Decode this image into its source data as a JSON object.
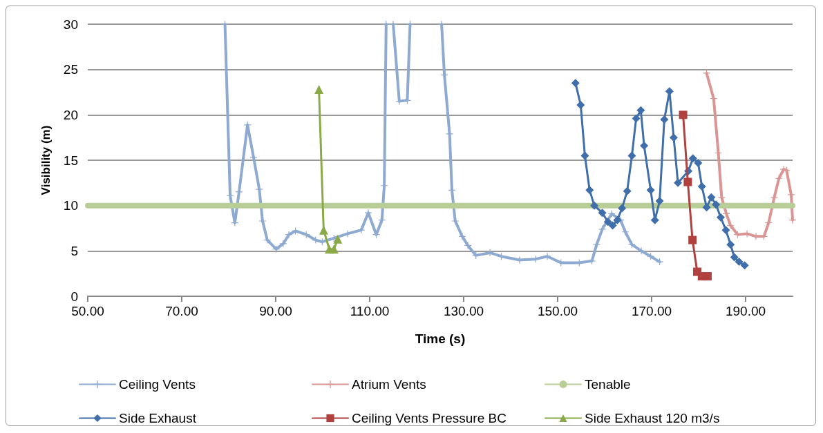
{
  "chart_data": {
    "type": "line",
    "xlabel": "Time (s)",
    "ylabel": "Visibility (m)",
    "xlim": [
      50,
      200
    ],
    "xticks": [
      {
        "value": 50,
        "label": "50.00"
      },
      {
        "value": 70,
        "label": "70.00"
      },
      {
        "value": 90,
        "label": "90.00"
      },
      {
        "value": 110,
        "label": "110.00"
      },
      {
        "value": 130,
        "label": "130.00"
      },
      {
        "value": 150,
        "label": "150.00"
      },
      {
        "value": 170,
        "label": "170.00"
      },
      {
        "value": 190,
        "label": "190.00"
      }
    ],
    "ylim": [
      0,
      30
    ],
    "yticks": [
      0,
      5,
      10,
      15,
      20,
      25,
      30
    ],
    "grid": "y",
    "legend": "bottom",
    "line_style": "solid",
    "series": [
      {
        "name": "Ceiling Vents",
        "color": "#8eaad1",
        "marker": "cross",
        "x": [
          79.2,
          80.3,
          81.3,
          82.2,
          84.0,
          85.3,
          86.5,
          87.2,
          88.2,
          90.1,
          91.6,
          92.8,
          94.2,
          96.5,
          98.5,
          99.9,
          102.4,
          105.3,
          108.2,
          109.7,
          111.4,
          112.6,
          113.1,
          113.5,
          114.2,
          115.0,
          116.3,
          118.0,
          118.6,
          122,
          125.3,
          125.9,
          127.0,
          127.5,
          128.2,
          129.7,
          130.9,
          132.6,
          135.6,
          138.0,
          141.9,
          145.3,
          147.8,
          150.7,
          154.6,
          157.3,
          158.3,
          159.5,
          161.5,
          163.4,
          164.4,
          165.8,
          167.8,
          169.8,
          171.7
        ],
        "values": [
          30,
          11.1,
          8.1,
          11.5,
          18.9,
          15.3,
          11.8,
          8.3,
          6.2,
          5.2,
          5.8,
          6.8,
          7.2,
          6.8,
          6.2,
          6.0,
          6.4,
          6.9,
          7.3,
          9.2,
          6.8,
          8.4,
          12.2,
          30,
          null,
          30,
          21.5,
          21.6,
          30,
          null,
          30,
          24.4,
          17.9,
          11.7,
          8.3,
          6.6,
          5.6,
          4.5,
          4.8,
          4.4,
          4.0,
          4.1,
          4.4,
          3.7,
          3.7,
          3.9,
          5.7,
          7.4,
          9.1,
          8.4,
          7.1,
          5.7,
          5.0,
          4.4,
          3.8
        ]
      },
      {
        "name": "Atrium Vents",
        "color": "#d99694",
        "marker": "cross",
        "x": [
          181.7,
          183.2,
          184.2,
          184.9,
          185.9,
          186.8,
          188.3,
          190.3,
          192.2,
          193.9,
          194.9,
          196.1,
          197.1,
          198.1,
          198.7,
          199.7,
          200
        ],
        "values": [
          24.6,
          21.8,
          15.8,
          10.9,
          9.1,
          7.8,
          6.8,
          6.9,
          6.6,
          6.6,
          8.1,
          10.9,
          13.0,
          14.0,
          13.9,
          11.2,
          8.4
        ]
      },
      {
        "name": "Tenable",
        "color": "#b9cd96",
        "marker": "none",
        "x": [
          50,
          200
        ],
        "values": [
          10,
          10
        ]
      },
      {
        "name": "Side Exhaust",
        "color": "#3f6eaa",
        "marker": "diamond",
        "x": [
          153.8,
          154.9,
          155.8,
          156.8,
          157.8,
          159.5,
          160.7,
          161.7,
          162.7,
          163.7,
          164.8,
          165.8,
          166.7,
          167.7,
          168.4,
          169.8,
          170.7,
          171.7,
          172.7,
          173.8,
          174.7,
          175.6,
          177.8,
          178.8,
          179.9,
          180.7,
          181.7,
          182.7,
          183.7,
          184.7,
          185.8,
          186.8,
          187.6,
          188.6,
          189.8
        ],
        "values": [
          23.5,
          21.1,
          15.5,
          11.7,
          10.0,
          9.2,
          8.2,
          7.8,
          8.4,
          9.7,
          11.6,
          15.5,
          19.6,
          20.5,
          16.6,
          11.7,
          8.4,
          10.5,
          19.5,
          22.6,
          17.5,
          12.5,
          13.8,
          15.2,
          14.7,
          12.1,
          9.8,
          10.9,
          10.1,
          8.7,
          7.3,
          5.7,
          4.3,
          3.8,
          3.4
        ]
      },
      {
        "name": "Ceiling Vents Pressure BC",
        "color": "#b0413e",
        "marker": "square",
        "x": [
          176.7,
          177.7,
          178.7,
          179.7,
          180.7,
          181.9
        ],
        "values": [
          20.0,
          12.6,
          6.2,
          2.7,
          2.2,
          2.2
        ]
      },
      {
        "name": "Side Exhaust 120 m3/s",
        "color": "#8aaa48",
        "marker": "triangle",
        "x": [
          99.2,
          100.2,
          101.4,
          102.4,
          103.2
        ],
        "values": [
          22.8,
          7.3,
          5.2,
          5.2,
          6.3
        ]
      }
    ]
  }
}
